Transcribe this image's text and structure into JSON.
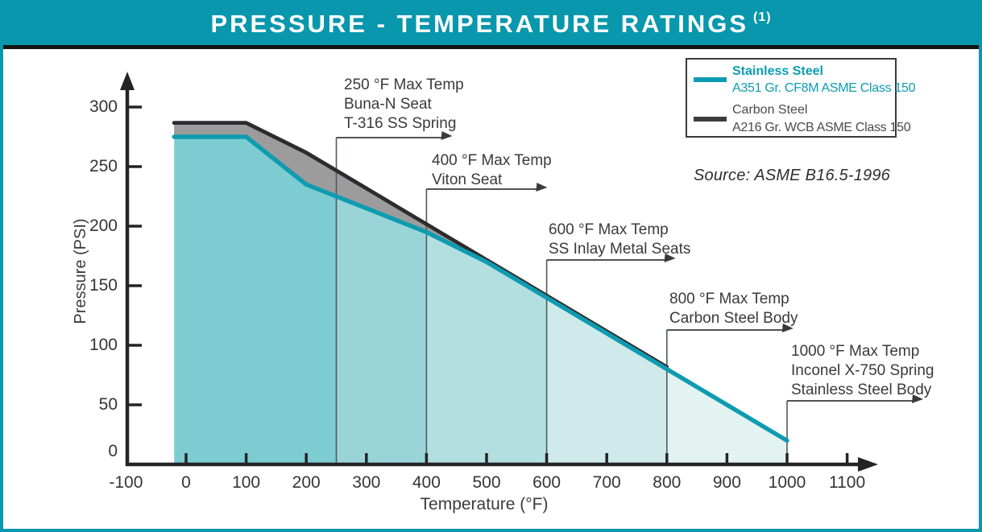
{
  "header": {
    "title": "PRESSURE - TEMPERATURE RATINGS",
    "footnote": "(1)",
    "bar_color": "#0897AC"
  },
  "legend": {
    "items": [
      {
        "label": "Stainless Steel",
        "spec": "A351 Gr. CF8M ASME Class 150",
        "color": "#0C9CB2"
      },
      {
        "label": "Carbon Steel",
        "spec": "A216 Gr. WCB ASME  Class 150",
        "color": "#3d3d3f"
      }
    ]
  },
  "source": "Source:  ASME B16.5-1996",
  "annotations": [
    {
      "max_temp": 250,
      "lines": [
        "250 °F Max Temp",
        "Buna-N Seat",
        "T-316 SS Spring"
      ]
    },
    {
      "max_temp": 400,
      "lines": [
        "400 °F Max Temp",
        "Viton Seat"
      ]
    },
    {
      "max_temp": 600,
      "lines": [
        "600 °F Max Temp",
        "SS Inlay Metal Seats"
      ]
    },
    {
      "max_temp": 800,
      "lines": [
        "800 °F Max Temp",
        "Carbon Steel Body"
      ]
    },
    {
      "max_temp": 1000,
      "lines": [
        "1000 °F Max Temp",
        "Inconel X-750 Spring",
        "Stainless Steel Body"
      ]
    }
  ],
  "chart_data": {
    "type": "area",
    "title": "PRESSURE - TEMPERATURE RATINGS (1)",
    "xlabel": "Temperature (°F)",
    "ylabel": "Pressure (PSI)",
    "xlim": [
      -100,
      1100
    ],
    "ylim": [
      0,
      300
    ],
    "x_ticks": [
      -100,
      0,
      100,
      200,
      300,
      400,
      500,
      600,
      700,
      800,
      900,
      1000,
      1100
    ],
    "y_ticks": [
      0,
      50,
      100,
      150,
      200,
      250,
      300
    ],
    "grid": false,
    "legend_position": "top-right",
    "series": [
      {
        "name": "Stainless Steel A351 Gr. CF8M ASME Class 150",
        "color": "#0F9BB0",
        "x": [
          -20,
          100,
          200,
          300,
          400,
          500,
          600,
          700,
          800,
          900,
          1000
        ],
        "y": [
          275,
          275,
          235,
          215,
          195,
          170,
          140,
          110,
          80,
          50,
          20
        ]
      },
      {
        "name": "Carbon Steel A216 Gr. WCB ASME Class 150",
        "color": "#2c2c2e",
        "x": [
          -20,
          100,
          200,
          300,
          400,
          500,
          600,
          700,
          800
        ],
        "y": [
          285,
          285,
          260,
          230,
          200,
          170,
          140,
          110,
          80
        ]
      }
    ],
    "between_curves_fill": "#9c9c9c",
    "zones": {
      "boundaries": [
        -20,
        250,
        400,
        600,
        800,
        1000
      ],
      "colors": [
        "#7CCCD2",
        "#99D5D8",
        "#B3DFE1",
        "#CEEAEA",
        "#E3F3F2"
      ]
    }
  }
}
